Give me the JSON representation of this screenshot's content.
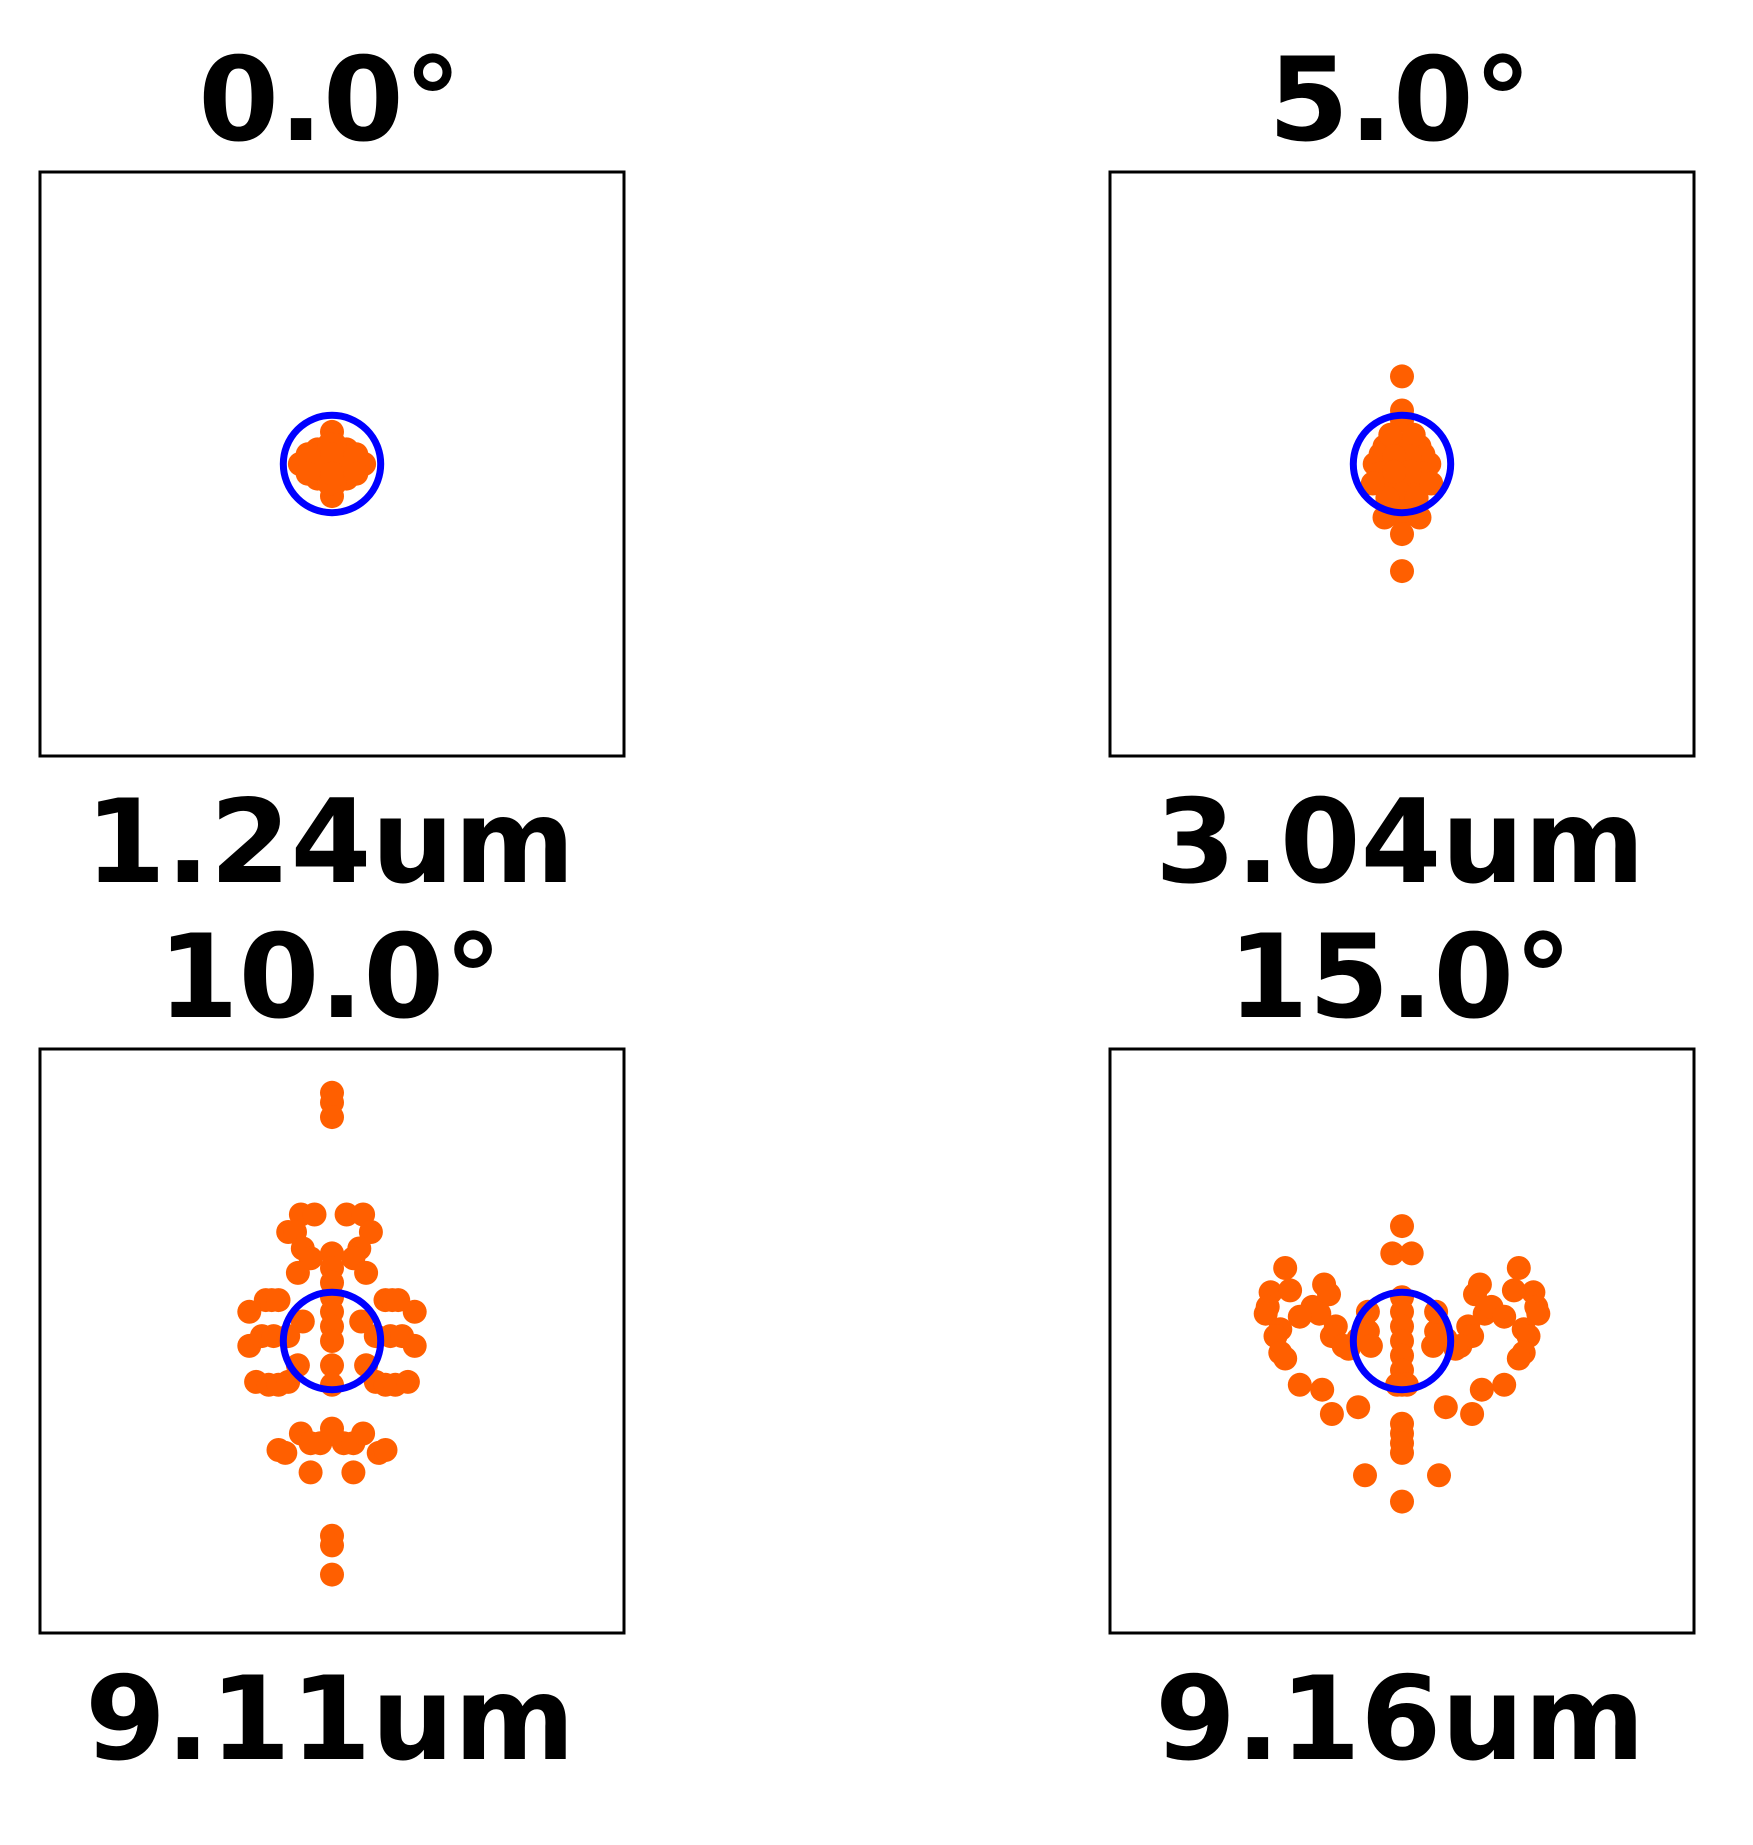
{
  "figure": {
    "colors": {
      "points": "#ff5f00",
      "circle": "#0000ff",
      "frame": "#000000"
    }
  },
  "chart_data": [
    {
      "type": "scatter",
      "title": "0.0°",
      "xlabel": "1.24um",
      "xlim": [
        -3.0,
        3.0
      ],
      "ylim": [
        -3.0,
        3.0
      ],
      "grid": false,
      "reference_circle": {
        "center": [
          0,
          0
        ],
        "radius": 0.5
      },
      "points": [
        [
          0,
          0
        ],
        [
          0,
          0.33
        ],
        [
          0,
          -0.33
        ],
        [
          0.33,
          0
        ],
        [
          -0.33,
          0
        ],
        [
          0.15,
          0.15
        ],
        [
          -0.15,
          0.15
        ],
        [
          0.15,
          -0.15
        ],
        [
          -0.15,
          -0.15
        ],
        [
          0.2,
          0.03
        ],
        [
          -0.2,
          0.03
        ],
        [
          0.2,
          -0.03
        ],
        [
          -0.2,
          -0.03
        ],
        [
          0.03,
          0.2
        ],
        [
          0.03,
          -0.2
        ],
        [
          -0.03,
          0.2
        ],
        [
          -0.03,
          -0.2
        ],
        [
          0.1,
          0
        ],
        [
          -0.1,
          0
        ],
        [
          0,
          0.1
        ],
        [
          0,
          -0.1
        ],
        [
          0.25,
          0.1
        ],
        [
          -0.25,
          0.1
        ],
        [
          0.25,
          -0.1
        ],
        [
          -0.25,
          -0.1
        ]
      ]
    },
    {
      "type": "scatter",
      "title": "5.0°",
      "xlabel": "3.04um",
      "xlim": [
        -3.0,
        3.0
      ],
      "ylim": [
        -3.0,
        3.0
      ],
      "grid": false,
      "reference_circle": {
        "center": [
          0,
          0
        ],
        "radius": 0.5
      },
      "points": [
        [
          0,
          0.9
        ],
        [
          0,
          0.55
        ],
        [
          0,
          0.45
        ],
        [
          0,
          0.2
        ],
        [
          0,
          0
        ],
        [
          0,
          -0.2
        ],
        [
          0,
          -0.4
        ],
        [
          0,
          -0.55
        ],
        [
          0,
          -0.72
        ],
        [
          0,
          -1.1
        ],
        [
          0.18,
          0.18
        ],
        [
          -0.18,
          0.18
        ],
        [
          0.18,
          -0.18
        ],
        [
          -0.18,
          -0.18
        ],
        [
          0.28,
          0
        ],
        [
          -0.28,
          0
        ],
        [
          0.22,
          0.1
        ],
        [
          -0.22,
          0.1
        ],
        [
          0.22,
          -0.1
        ],
        [
          -0.22,
          -0.1
        ],
        [
          0.15,
          -0.35
        ],
        [
          -0.15,
          -0.35
        ],
        [
          0.18,
          -0.55
        ],
        [
          -0.18,
          -0.55
        ],
        [
          0.12,
          0.3
        ],
        [
          -0.12,
          0.3
        ],
        [
          0.3,
          -0.2
        ],
        [
          -0.3,
          -0.2
        ],
        [
          0.08,
          0.08
        ],
        [
          -0.08,
          0.08
        ],
        [
          0.08,
          -0.08
        ],
        [
          -0.08,
          -0.08
        ]
      ]
    },
    {
      "type": "scatter",
      "title": "10.0°",
      "xlabel": "9.11um",
      "xlim": [
        -3.0,
        3.0
      ],
      "ylim": [
        -3.0,
        3.0
      ],
      "grid": false,
      "reference_circle": {
        "center": [
          0,
          0
        ],
        "radius": 0.5
      },
      "points": [
        [
          0,
          2.55
        ],
        [
          0,
          2.45
        ],
        [
          0,
          2.3
        ],
        [
          0,
          -2.0
        ],
        [
          0,
          -2.1
        ],
        [
          0,
          -2.4
        ],
        [
          0,
          0.9
        ],
        [
          0,
          0.75
        ],
        [
          0,
          0.6
        ],
        [
          0,
          0.45
        ],
        [
          0,
          0.3
        ],
        [
          0,
          0.15
        ],
        [
          0,
          0
        ],
        [
          0,
          -0.25
        ],
        [
          0,
          -0.45
        ],
        [
          -0.32,
          1.3
        ],
        [
          -0.18,
          1.3
        ],
        [
          0.15,
          1.3
        ],
        [
          0.32,
          1.3
        ],
        [
          -0.45,
          1.12
        ],
        [
          -0.38,
          1.12
        ],
        [
          0.4,
          1.12
        ],
        [
          -0.3,
          0.95
        ],
        [
          -0.22,
          0.85
        ],
        [
          0.28,
          0.95
        ],
        [
          0.22,
          0.85
        ],
        [
          -0.35,
          0.7
        ],
        [
          0.35,
          0.7
        ],
        [
          -0.68,
          0.42
        ],
        [
          -0.62,
          0.42
        ],
        [
          -0.55,
          0.42
        ],
        [
          0.55,
          0.42
        ],
        [
          0.62,
          0.42
        ],
        [
          0.68,
          0.42
        ],
        [
          -0.85,
          0.3
        ],
        [
          0.85,
          0.3
        ],
        [
          -0.85,
          -0.05
        ],
        [
          -0.72,
          0.05
        ],
        [
          -0.6,
          0.05
        ],
        [
          -0.45,
          0.05
        ],
        [
          0.45,
          0.05
        ],
        [
          0.6,
          0.05
        ],
        [
          0.72,
          0.05
        ],
        [
          0.85,
          -0.05
        ],
        [
          -0.3,
          0.2
        ],
        [
          0.3,
          0.2
        ],
        [
          -0.35,
          -0.25
        ],
        [
          0.35,
          -0.25
        ],
        [
          -0.78,
          -0.42
        ],
        [
          -0.65,
          -0.45
        ],
        [
          -0.55,
          -0.45
        ],
        [
          -0.45,
          -0.42
        ],
        [
          0.45,
          -0.42
        ],
        [
          0.55,
          -0.45
        ],
        [
          0.65,
          -0.45
        ],
        [
          0.78,
          -0.42
        ],
        [
          -0.32,
          -0.95
        ],
        [
          -0.22,
          -1.05
        ],
        [
          -0.12,
          -1.05
        ],
        [
          0,
          -0.9
        ],
        [
          0.12,
          -1.05
        ],
        [
          0.22,
          -1.05
        ],
        [
          0.32,
          -0.95
        ],
        [
          -0.55,
          -1.12
        ],
        [
          -0.48,
          -1.15
        ],
        [
          0.48,
          -1.15
        ],
        [
          0.55,
          -1.12
        ],
        [
          -0.22,
          -1.35
        ],
        [
          0.22,
          -1.35
        ]
      ]
    },
    {
      "type": "scatter",
      "title": "15.0°",
      "xlabel": "9.16um",
      "xlim": [
        -3.0,
        3.0
      ],
      "ylim": [
        -3.0,
        3.0
      ],
      "grid": false,
      "reference_circle": {
        "center": [
          0,
          0
        ],
        "radius": 0.5
      },
      "points": [
        [
          0,
          1.18
        ],
        [
          -0.1,
          0.9
        ],
        [
          0.1,
          0.9
        ],
        [
          -1.2,
          0.75
        ],
        [
          1.2,
          0.75
        ],
        [
          -1.35,
          0.5
        ],
        [
          1.35,
          0.5
        ],
        [
          -1.38,
          0.35
        ],
        [
          1.38,
          0.35
        ],
        [
          -1.4,
          0.28
        ],
        [
          1.4,
          0.28
        ],
        [
          -1.15,
          0.52
        ],
        [
          1.15,
          0.52
        ],
        [
          -0.8,
          0.58
        ],
        [
          -0.75,
          0.48
        ],
        [
          0.75,
          0.48
        ],
        [
          0.8,
          0.58
        ],
        [
          -0.92,
          0.35
        ],
        [
          -0.85,
          0.28
        ],
        [
          0.85,
          0.28
        ],
        [
          0.92,
          0.35
        ],
        [
          -1.05,
          0.25
        ],
        [
          1.05,
          0.25
        ],
        [
          -1.25,
          0.12
        ],
        [
          1.25,
          0.12
        ],
        [
          -1.3,
          0.05
        ],
        [
          1.3,
          0.05
        ],
        [
          -1.25,
          -0.12
        ],
        [
          1.25,
          -0.12
        ],
        [
          -1.2,
          -0.18
        ],
        [
          1.2,
          -0.18
        ],
        [
          -0.68,
          0.15
        ],
        [
          0.68,
          0.15
        ],
        [
          -0.72,
          0.05
        ],
        [
          0.72,
          0.05
        ],
        [
          -0.6,
          -0.05
        ],
        [
          0.6,
          -0.05
        ],
        [
          -0.55,
          -0.08
        ],
        [
          0.55,
          -0.08
        ],
        [
          -0.45,
          0.02
        ],
        [
          0.45,
          0.02
        ],
        [
          -0.35,
          0.1
        ],
        [
          0.35,
          0.1
        ],
        [
          -0.35,
          0.3
        ],
        [
          0.35,
          0.3
        ],
        [
          0,
          0.45
        ],
        [
          0,
          0.3
        ],
        [
          0,
          0.15
        ],
        [
          0,
          0
        ],
        [
          0,
          -0.15
        ],
        [
          0,
          -0.3
        ],
        [
          0,
          -0.45
        ],
        [
          -0.32,
          -0.05
        ],
        [
          0.32,
          -0.05
        ],
        [
          0.05,
          -0.45
        ],
        [
          -0.05,
          -0.45
        ],
        [
          -1.05,
          -0.45
        ],
        [
          1.05,
          -0.45
        ],
        [
          -0.82,
          -0.5
        ],
        [
          0.82,
          -0.5
        ],
        [
          -0.72,
          -0.75
        ],
        [
          0.72,
          -0.75
        ],
        [
          -0.45,
          -0.68
        ],
        [
          0.45,
          -0.68
        ],
        [
          0,
          -0.85
        ],
        [
          0,
          -0.95
        ],
        [
          0,
          -1.05
        ],
        [
          0,
          -1.15
        ],
        [
          -0.38,
          -1.38
        ],
        [
          0.38,
          -1.38
        ],
        [
          0,
          -1.65
        ]
      ]
    }
  ]
}
